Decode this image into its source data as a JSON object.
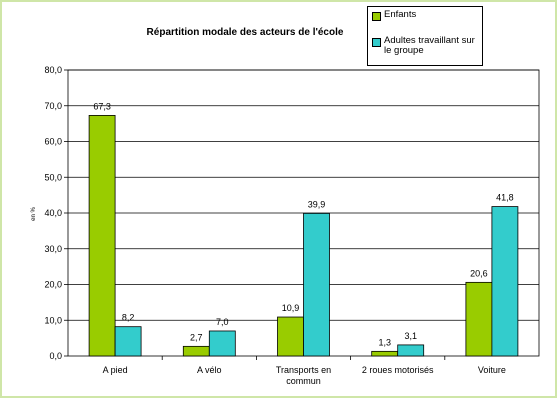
{
  "chart_data": {
    "type": "bar",
    "title": "Répartition modale des acteurs de l'école",
    "ylabel": "en %",
    "xlabel": "",
    "categories": [
      "A pied",
      "A vélo",
      "Transports en commun",
      "2 roues motorisés",
      "Voiture"
    ],
    "category_lines": [
      [
        "A pied"
      ],
      [
        "A vélo"
      ],
      [
        "Transports en",
        "commun"
      ],
      [
        "2 roues motorisés"
      ],
      [
        "Voiture"
      ]
    ],
    "series": [
      {
        "name": "Enfants",
        "values": [
          67.3,
          2.7,
          10.9,
          1.3,
          20.6
        ],
        "labels": [
          "67,3",
          "2,7",
          "10,9",
          "1,3",
          "20,6"
        ],
        "color": "#99cc00"
      },
      {
        "name": "Adultes travaillant sur le groupe",
        "values": [
          8.2,
          7.0,
          39.9,
          3.1,
          41.8
        ],
        "labels": [
          "8,2",
          "7,0",
          "39,9",
          "3,1",
          "41,8"
        ],
        "color": "#33cccc"
      }
    ],
    "ylim": [
      0,
      80
    ],
    "yticks": [
      0,
      10,
      20,
      30,
      40,
      50,
      60,
      70,
      80
    ],
    "ytick_labels": [
      "0,0",
      "10,0",
      "20,0",
      "30,0",
      "40,0",
      "50,0",
      "60,0",
      "70,0",
      "80,0"
    ],
    "grid": true,
    "legend_position": "top-right"
  }
}
